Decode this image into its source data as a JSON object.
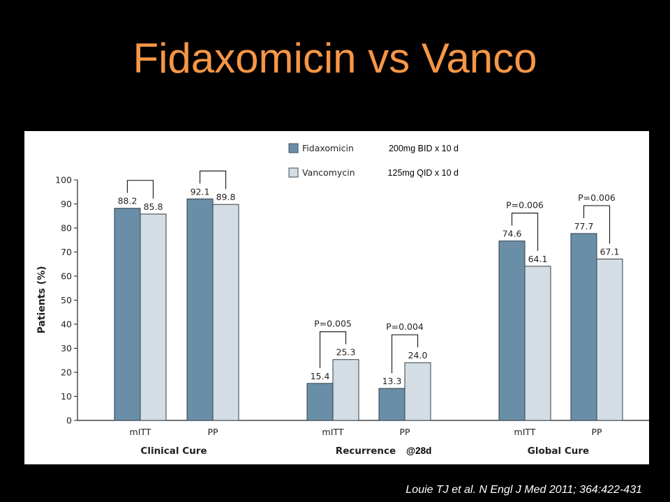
{
  "title": "Fidaxomicin vs Vanco",
  "citation": "Louie TJ et al. N Engl J Med 2011; 364:422-431",
  "colors": {
    "title": "#f79646",
    "fidaxomicin": "#6b8ea8",
    "vancomycin": "#d4dde3"
  },
  "chart_data": {
    "type": "bar",
    "ylabel": "Patients (%)",
    "ylim": [
      0,
      100
    ],
    "yticks": [
      0,
      10,
      20,
      30,
      40,
      50,
      60,
      70,
      80,
      90,
      100
    ],
    "legend_placement": "top-center",
    "series": [
      {
        "name": "Fidaxomicin",
        "note": "200mg BID x 10 d",
        "color": "#6b8ea8"
      },
      {
        "name": "Vancomycin",
        "note": "125mg QID x 10 d",
        "color": "#d4dde3"
      }
    ],
    "groups": [
      {
        "label": "Clinical Cure",
        "subgroups": [
          {
            "label": "mITT",
            "values": [
              88.2,
              85.8
            ],
            "value_labels": [
              "88.2",
              "85.8"
            ],
            "p_value": ""
          },
          {
            "label": "PP",
            "values": [
              92.1,
              89.8
            ],
            "value_labels": [
              "92.1",
              "89.8"
            ],
            "p_value": ""
          }
        ]
      },
      {
        "label": "Recurrence",
        "note": "@28d",
        "subgroups": [
          {
            "label": "mITT",
            "values": [
              15.4,
              25.3
            ],
            "value_labels": [
              "15.4",
              "25.3"
            ],
            "p_value": "P=0.005"
          },
          {
            "label": "PP",
            "values": [
              13.3,
              24.0
            ],
            "value_labels": [
              "13.3",
              "24.0"
            ],
            "p_value": "P=0.004"
          }
        ]
      },
      {
        "label": "Global Cure",
        "subgroups": [
          {
            "label": "mITT",
            "values": [
              74.6,
              64.1
            ],
            "value_labels": [
              "74.6",
              "64.1"
            ],
            "p_value": "P=0.006"
          },
          {
            "label": "PP",
            "values": [
              77.7,
              67.1
            ],
            "value_labels": [
              "77.7",
              "67.1"
            ],
            "p_value": "P=0.006"
          }
        ]
      }
    ]
  }
}
